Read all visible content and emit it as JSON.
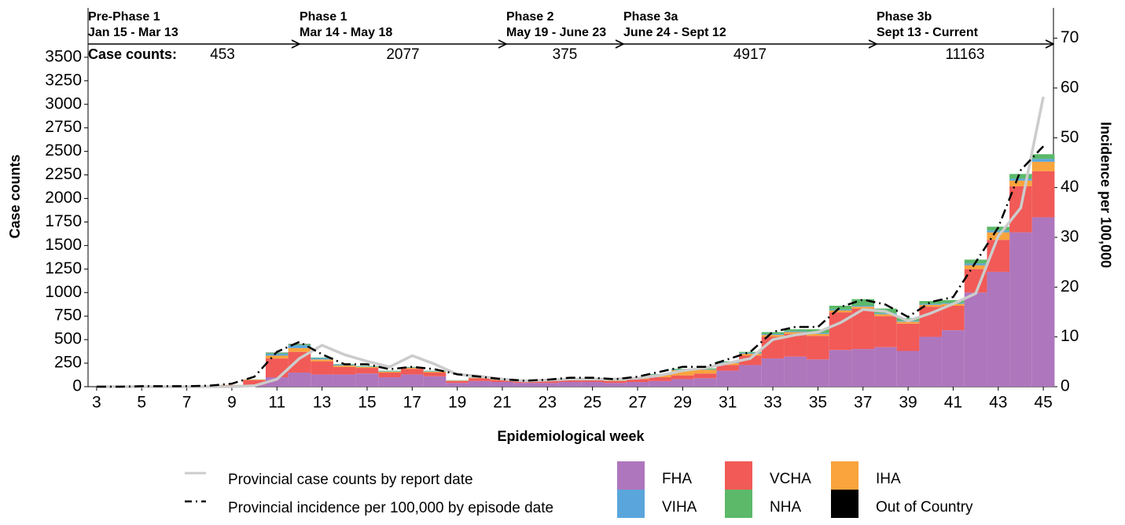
{
  "chart_data": {
    "type": "bar",
    "stacked": true,
    "phases": [
      {
        "name": "Pre-Phase 1",
        "dates": "Jan 15 - Mar 13",
        "count": 453
      },
      {
        "name": "Phase 1",
        "dates": "Mar 14 - May 18",
        "count": 2077
      },
      {
        "name": "Phase 2",
        "dates": "May 19 - June 23",
        "count": 375
      },
      {
        "name": "Phase 3a",
        "dates": "June 24 - Sept 12",
        "count": 4917
      },
      {
        "name": "Phase 3b",
        "dates": "Sept 13 - Current",
        "count": 11163
      }
    ],
    "phase_count_label": "Case counts:",
    "x_label": "Epidemiological week",
    "y_label": "Case counts",
    "y2_label": "Incidence per 100,000",
    "x": [
      3,
      4,
      5,
      6,
      7,
      8,
      9,
      10,
      11,
      12,
      13,
      14,
      15,
      16,
      17,
      18,
      19,
      20,
      21,
      22,
      23,
      24,
      25,
      26,
      27,
      28,
      29,
      30,
      31,
      32,
      33,
      34,
      35,
      36,
      37,
      38,
      39,
      40,
      41,
      42,
      43,
      44,
      45
    ],
    "xlim": [
      2.62,
      45.45
    ],
    "xticks": [
      3,
      5,
      7,
      9,
      11,
      13,
      15,
      17,
      19,
      21,
      23,
      25,
      27,
      29,
      31,
      33,
      35,
      37,
      39,
      41,
      43,
      45
    ],
    "ylim": [
      0,
      4025
    ],
    "yticks": [
      0,
      250,
      500,
      750,
      1000,
      1250,
      1500,
      1750,
      2000,
      2250,
      2500,
      2750,
      3000,
      3250,
      3500
    ],
    "y2lim": [
      0,
      76.1
    ],
    "y2ticks": [
      0,
      10,
      20,
      30,
      40,
      50,
      60,
      70
    ],
    "series": [
      {
        "name": "FHA",
        "color": "#ae76bd",
        "values": [
          0,
          0,
          0,
          0,
          0,
          2,
          5,
          20,
          100,
          150,
          130,
          130,
          140,
          100,
          130,
          110,
          40,
          60,
          50,
          40,
          40,
          50,
          50,
          40,
          50,
          60,
          80,
          90,
          170,
          230,
          300,
          320,
          290,
          390,
          400,
          420,
          380,
          530,
          600,
          1000,
          1220,
          1640,
          1800
        ]
      },
      {
        "name": "VCHA",
        "color": "#f15a57",
        "values": [
          0,
          0,
          1,
          1,
          1,
          3,
          12,
          50,
          200,
          220,
          140,
          80,
          60,
          50,
          60,
          40,
          20,
          30,
          20,
          15,
          20,
          20,
          20,
          20,
          30,
          40,
          40,
          50,
          60,
          100,
          230,
          240,
          250,
          400,
          430,
          330,
          290,
          320,
          260,
          250,
          340,
          490,
          490
        ]
      },
      {
        "name": "IHA",
        "color": "#f9a43c",
        "values": [
          0,
          0,
          0,
          0,
          0,
          0,
          2,
          5,
          30,
          40,
          20,
          15,
          10,
          10,
          10,
          10,
          5,
          5,
          5,
          3,
          5,
          5,
          5,
          5,
          10,
          25,
          55,
          40,
          20,
          20,
          20,
          20,
          20,
          20,
          20,
          20,
          20,
          20,
          20,
          40,
          80,
          60,
          100
        ]
      },
      {
        "name": "VIHA",
        "color": "#5aa6dc",
        "values": [
          0,
          0,
          0,
          0,
          0,
          0,
          1,
          2,
          20,
          30,
          15,
          10,
          5,
          5,
          5,
          5,
          2,
          2,
          2,
          1,
          2,
          2,
          2,
          2,
          2,
          5,
          5,
          5,
          10,
          10,
          10,
          10,
          10,
          10,
          10,
          10,
          10,
          10,
          10,
          20,
          20,
          20,
          30
        ]
      },
      {
        "name": "NHA",
        "color": "#5cb96a",
        "values": [
          0,
          0,
          0,
          0,
          0,
          0,
          0,
          1,
          10,
          10,
          5,
          5,
          5,
          5,
          5,
          5,
          2,
          2,
          2,
          1,
          2,
          2,
          2,
          2,
          3,
          5,
          10,
          10,
          10,
          10,
          20,
          20,
          40,
          40,
          70,
          50,
          30,
          30,
          30,
          40,
          40,
          50,
          50
        ]
      },
      {
        "name": "Out of Country",
        "color": "#000000",
        "values": [
          0,
          0,
          0,
          0,
          0,
          0,
          0,
          0,
          2,
          3,
          0,
          0,
          0,
          0,
          0,
          0,
          0,
          0,
          0,
          0,
          0,
          0,
          0,
          0,
          0,
          0,
          0,
          0,
          0,
          0,
          0,
          0,
          0,
          0,
          0,
          0,
          0,
          0,
          0,
          0,
          0,
          0,
          0
        ]
      },
      {
        "name": "Provincial case counts by report date",
        "type": "line",
        "color": "#cccccc",
        "linestyle": "solid",
        "values": [
          0,
          0,
          0,
          0,
          0,
          0,
          0,
          10,
          80,
          300,
          440,
          340,
          270,
          210,
          330,
          240,
          130,
          110,
          80,
          60,
          70,
          80,
          80,
          80,
          90,
          120,
          170,
          200,
          250,
          300,
          500,
          550,
          580,
          680,
          820,
          800,
          700,
          780,
          880,
          990,
          1600,
          1900,
          3080
        ]
      },
      {
        "name": "Provincial incidence per 100,000 by episode date",
        "type": "line",
        "axis": "y2",
        "color": "#000000",
        "linestyle": "dashdot",
        "values": [
          0,
          0,
          0.1,
          0.1,
          0.1,
          0.2,
          0.6,
          2,
          7,
          9,
          6.5,
          4.5,
          4.5,
          3.5,
          4,
          3.5,
          2.5,
          2,
          1.5,
          1.2,
          1.4,
          1.8,
          1.8,
          1.5,
          2,
          3,
          4,
          4,
          5.5,
          7,
          11,
          12,
          12,
          16,
          17.5,
          16.5,
          14,
          17,
          18,
          25,
          32,
          43.5,
          48.3
        ]
      }
    ]
  }
}
